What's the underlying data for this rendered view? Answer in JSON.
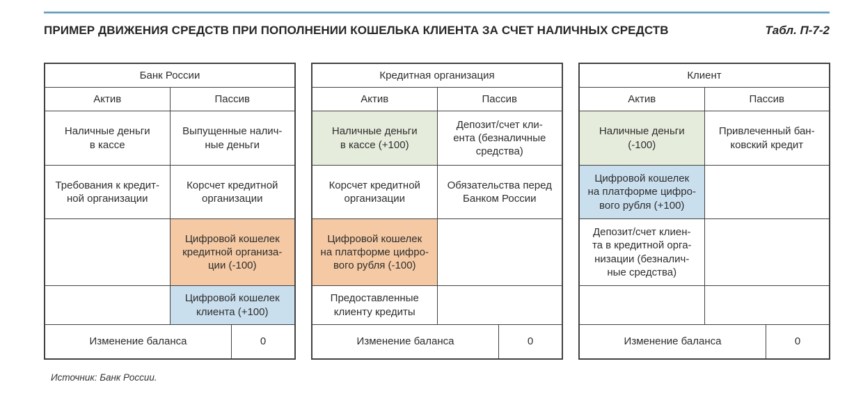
{
  "page": {
    "title": "ПРИМЕР ДВИЖЕНИЯ СРЕДСТВ ПРИ ПОПОЛНЕНИИ КОШЕЛЬКА КЛИЕНТА ЗА СЧЕТ НАЛИЧНЫХ СРЕДСТВ",
    "table_ref": "Табл. П-7-2",
    "source": "Источник: Банк России."
  },
  "colors": {
    "accent_rule": "#69a2bc",
    "cell_orange": "#f5c9a3",
    "cell_blue": "#cadfee",
    "cell_green": "#e6ecdc",
    "border": "#414141",
    "text": "#2d2d2d"
  },
  "tables": [
    {
      "title": "Банк России",
      "columns": [
        "Актив",
        "Пассив"
      ],
      "rows": [
        [
          {
            "text": "Наличные деньги\nв кассе",
            "bg": "none"
          },
          {
            "text": "Выпущенные налич-\nные деньги",
            "bg": "none"
          }
        ],
        [
          {
            "text": "Требования к кредит-\nной организации",
            "bg": "none"
          },
          {
            "text": "Корсчет кредитной\nорганизации",
            "bg": "none"
          }
        ],
        [
          {
            "text": "",
            "bg": "none"
          },
          {
            "text": "Цифровой кошелек\nкредитной организа-\nции (-100)",
            "bg": "orange"
          }
        ],
        [
          {
            "text": "",
            "bg": "none"
          },
          {
            "text": "Цифровой кошелек\nклиента (+100)",
            "bg": "blue"
          }
        ]
      ],
      "footer": {
        "label": "Изменение баланса",
        "value": "0"
      }
    },
    {
      "title": "Кредитная организация",
      "columns": [
        "Актив",
        "Пассив"
      ],
      "rows": [
        [
          {
            "text": "Наличные деньги\nв кассе (+100)",
            "bg": "green"
          },
          {
            "text": "Депозит/счет кли-\nента (безналичные\nсредства)",
            "bg": "none"
          }
        ],
        [
          {
            "text": "Корсчет кредитной\nорганизации",
            "bg": "none"
          },
          {
            "text": "Обязательства перед\nБанком России",
            "bg": "none"
          }
        ],
        [
          {
            "text": "Цифровой кошелек\nна платформе цифро-\nвого рубля (-100)",
            "bg": "orange"
          },
          {
            "text": "",
            "bg": "none"
          }
        ],
        [
          {
            "text": "Предоставленные\nклиенту кредиты",
            "bg": "none"
          },
          {
            "text": "",
            "bg": "none"
          }
        ]
      ],
      "footer": {
        "label": "Изменение баланса",
        "value": "0"
      }
    },
    {
      "title": "Клиент",
      "columns": [
        "Актив",
        "Пассив"
      ],
      "rows": [
        [
          {
            "text": "Наличные деньги\n(-100)",
            "bg": "green"
          },
          {
            "text": "Привлеченный бан-\nковский кредит",
            "bg": "none"
          }
        ],
        [
          {
            "text": "Цифровой кошелек\nна платформе цифро-\nвого рубля (+100)",
            "bg": "blue"
          },
          {
            "text": "",
            "bg": "none"
          }
        ],
        [
          {
            "text": "Депозит/счет клиен-\nта в кредитной орга-\nнизации (безналич-\nные средства)",
            "bg": "none"
          },
          {
            "text": "",
            "bg": "none"
          }
        ],
        [
          {
            "text": "",
            "bg": "none"
          },
          {
            "text": "",
            "bg": "none"
          }
        ]
      ],
      "footer": {
        "label": "Изменение баланса",
        "value": "0"
      }
    }
  ]
}
